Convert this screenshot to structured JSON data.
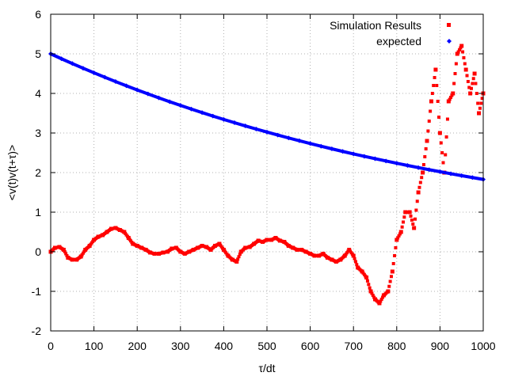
{
  "chart_data": {
    "type": "scatter",
    "xlabel": "τ/dt",
    "ylabel": "<v(t)v(t+τ)>",
    "xlim": [
      0,
      1000
    ],
    "ylim": [
      -2,
      6
    ],
    "xticks": [
      0,
      100,
      200,
      300,
      400,
      500,
      600,
      700,
      800,
      900,
      1000
    ],
    "yticks": [
      -2,
      -1,
      0,
      1,
      2,
      3,
      4,
      5,
      6
    ],
    "grid": true,
    "legend_position": "top-right",
    "series": [
      {
        "name": "Simulation Results",
        "color": "#ff0000",
        "marker": "square",
        "x": [
          0,
          10,
          20,
          30,
          40,
          50,
          60,
          70,
          80,
          90,
          100,
          110,
          120,
          130,
          140,
          150,
          160,
          170,
          180,
          190,
          200,
          210,
          220,
          230,
          240,
          250,
          260,
          270,
          280,
          290,
          300,
          310,
          320,
          330,
          340,
          350,
          360,
          370,
          380,
          390,
          400,
          410,
          420,
          430,
          440,
          450,
          460,
          470,
          480,
          490,
          500,
          510,
          520,
          530,
          540,
          550,
          560,
          570,
          580,
          590,
          600,
          610,
          620,
          630,
          640,
          650,
          660,
          670,
          680,
          690,
          700,
          710,
          720,
          730,
          740,
          750,
          760,
          770,
          780,
          790,
          800,
          810,
          820,
          830,
          840,
          850,
          860,
          870,
          880,
          890,
          900,
          910,
          920,
          930,
          940,
          950,
          960,
          970,
          980,
          990,
          1000
        ],
        "y": [
          0.0,
          0.1,
          0.12,
          0.05,
          -0.15,
          -0.2,
          -0.2,
          -0.12,
          0.05,
          0.15,
          0.3,
          0.38,
          0.42,
          0.5,
          0.58,
          0.6,
          0.55,
          0.5,
          0.35,
          0.2,
          0.15,
          0.1,
          0.05,
          -0.02,
          -0.05,
          -0.05,
          -0.02,
          0.0,
          0.08,
          0.1,
          0.0,
          -0.05,
          0.0,
          0.05,
          0.1,
          0.15,
          0.12,
          0.05,
          0.15,
          0.2,
          0.05,
          -0.1,
          -0.2,
          -0.25,
          0.0,
          0.1,
          0.12,
          0.2,
          0.28,
          0.25,
          0.3,
          0.3,
          0.35,
          0.28,
          0.25,
          0.15,
          0.1,
          0.05,
          0.05,
          0.0,
          -0.05,
          -0.1,
          -0.1,
          -0.05,
          -0.15,
          -0.2,
          -0.25,
          -0.2,
          -0.1,
          0.05,
          -0.1,
          -0.4,
          -0.5,
          -0.65,
          -1.0,
          -1.2,
          -1.3,
          -1.1,
          -1.0,
          -0.5,
          0.3,
          0.5,
          1.0,
          1.0,
          0.6,
          1.5,
          2.0,
          2.8,
          3.8,
          4.6,
          3.0,
          2.0,
          3.8,
          4.0,
          5.0,
          5.2,
          4.6,
          4.0,
          4.5,
          3.5,
          4.0
        ]
      },
      {
        "name": "expected",
        "color": "#0000ff",
        "marker": "diamond",
        "x": [
          0,
          25,
          50,
          75,
          100,
          125,
          150,
          175,
          200,
          225,
          250,
          275,
          300,
          325,
          350,
          375,
          400,
          425,
          450,
          475,
          500,
          525,
          550,
          575,
          600,
          625,
          650,
          675,
          700,
          725,
          750,
          775,
          800,
          825,
          850,
          875,
          900,
          925,
          950,
          975,
          1000
        ],
        "y": [
          5.0,
          4.875,
          4.754,
          4.636,
          4.521,
          4.409,
          4.299,
          4.192,
          4.088,
          3.987,
          3.888,
          3.791,
          3.697,
          3.605,
          3.516,
          3.428,
          3.343,
          3.26,
          3.179,
          3.1,
          3.023,
          2.948,
          2.875,
          2.804,
          2.734,
          2.666,
          2.6,
          2.535,
          2.472,
          2.411,
          2.351,
          2.293,
          2.236,
          2.18,
          2.126,
          2.073,
          2.022,
          1.971,
          1.922,
          1.875,
          1.828
        ]
      }
    ]
  }
}
